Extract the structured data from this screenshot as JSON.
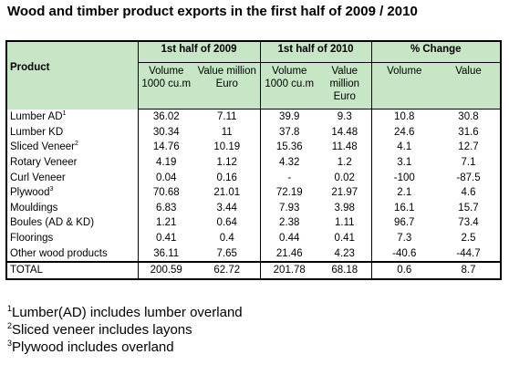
{
  "title": "Wood and timber product exports in the first half of 2009 / 2010",
  "header": {
    "product": "Product",
    "groups": [
      "1st half of 2009",
      "1st half of 2010",
      "% Change"
    ],
    "sub": {
      "vol_a": "Volume",
      "vol_b": "1000 cu.m",
      "val_a": "Value million",
      "val_b": "Euro",
      "pct_vol": "Volume",
      "pct_val": "Value"
    }
  },
  "rows": [
    {
      "name": "Lumber AD",
      "sup": "1",
      "v09": "36.02",
      "e09": "7.11",
      "v10": "39.9",
      "e10": "9.3",
      "pv": "10.8",
      "pe": "30.8"
    },
    {
      "name": "Lumber KD",
      "sup": "",
      "v09": "30.34",
      "e09": "11",
      "v10": "37.8",
      "e10": "14.48",
      "pv": "24.6",
      "pe": "31.6"
    },
    {
      "name": "Sliced Veneer",
      "sup": "2",
      "v09": "14.76",
      "e09": "10.19",
      "v10": "15.36",
      "e10": "11.48",
      "pv": "4.1",
      "pe": "12.7"
    },
    {
      "name": "Rotary Veneer",
      "sup": "",
      "v09": "4.19",
      "e09": "1.12",
      "v10": "4.32",
      "e10": "1.2",
      "pv": "3.1",
      "pe": "7.1"
    },
    {
      "name": "Curl Veneer",
      "sup": "",
      "v09": "0.04",
      "e09": "0.16",
      "v10": "-",
      "e10": "0.02",
      "pv": "-100",
      "pe": "-87.5"
    },
    {
      "name": "Plywood",
      "sup": "3",
      "v09": "70.68",
      "e09": "21.01",
      "v10": "72.19",
      "e10": "21.97",
      "pv": "2.1",
      "pe": "4.6"
    },
    {
      "name": "Mouldings",
      "sup": "",
      "v09": "6.83",
      "e09": "3.44",
      "v10": "7.93",
      "e10": "3.98",
      "pv": "16.1",
      "pe": "15.7"
    },
    {
      "name": "Boules (AD & KD)",
      "sup": "",
      "v09": "1.21",
      "e09": "0.64",
      "v10": "2.38",
      "e10": "1.11",
      "pv": "96.7",
      "pe": "73.4"
    },
    {
      "name": "Floorings",
      "sup": "",
      "v09": "0.41",
      "e09": "0.4",
      "v10": "0.44",
      "e10": "0.41",
      "pv": "7.3",
      "pe": "2.5"
    },
    {
      "name": "Other wood products",
      "sup": "",
      "v09": "36.11",
      "e09": "7.65",
      "v10": "21.46",
      "e10": "4.23",
      "pv": "-40.6",
      "pe": "-44.7"
    }
  ],
  "total": {
    "name": "TOTAL",
    "v09": "200.59",
    "e09": "62.72",
    "v10": "201.78",
    "e10": "68.18",
    "pv": "0.6",
    "pe": "8.7"
  },
  "notes": [
    {
      "sup": "1",
      "text": "Lumber(AD) includes lumber overland"
    },
    {
      "sup": "2",
      "text": "Sliced veneer includes layons"
    },
    {
      "sup": "3",
      "text": "Plywood includes overland"
    }
  ],
  "colors": {
    "header_bg": "#c6e6c6"
  }
}
